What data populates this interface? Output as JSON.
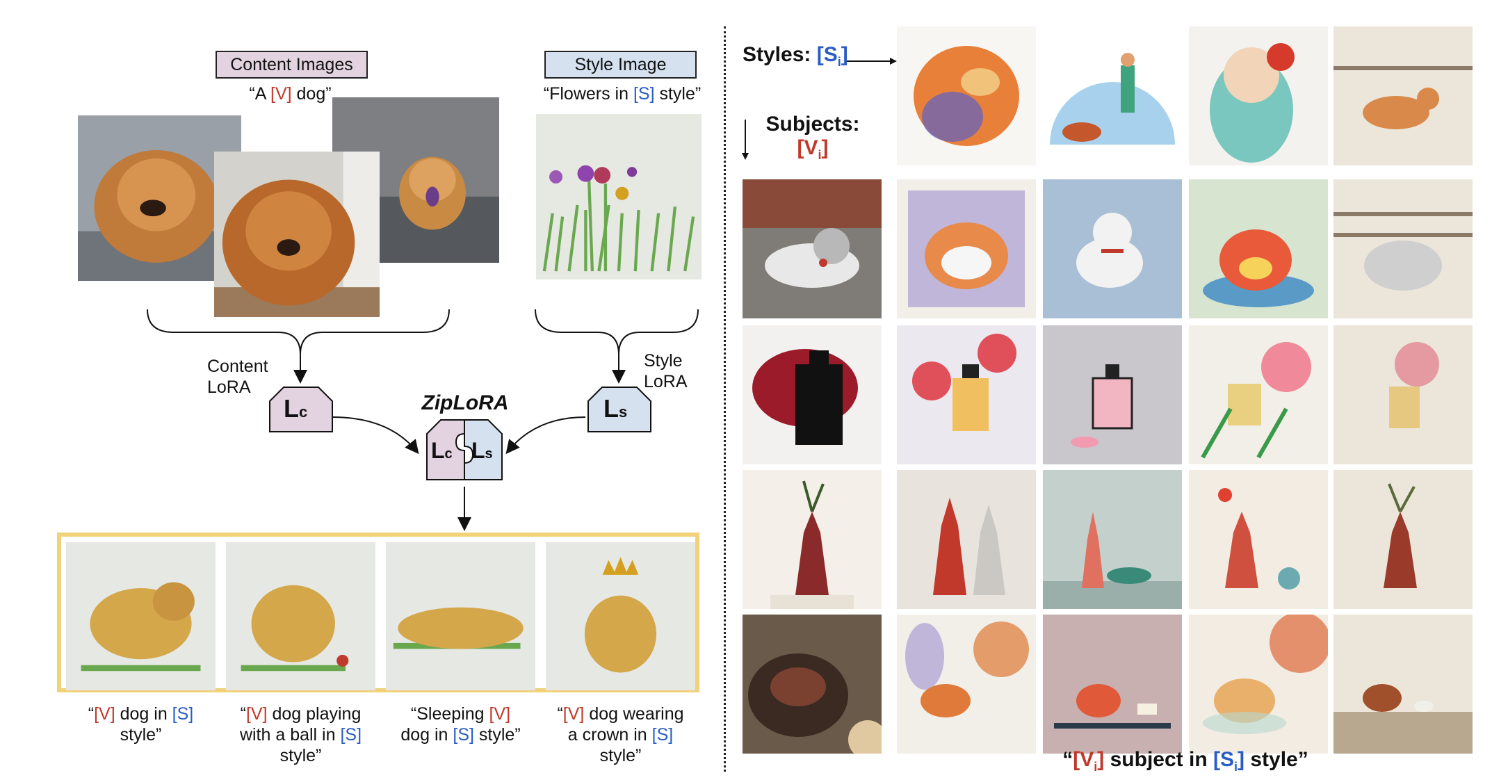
{
  "left": {
    "content_box_label": "Content Images",
    "content_prompt": {
      "q_open": "“A ",
      "token": "[V]",
      "rest": " dog”"
    },
    "style_box_label": "Style Image",
    "style_prompt": {
      "q_open": "“Flowers in ",
      "token": "[S]",
      "rest": " style”"
    },
    "content_lora_label_1": "Content",
    "content_lora_label_2": "LoRA",
    "style_lora_label_1": "Style",
    "style_lora_label_2": "LoRA",
    "lc_letter": "L",
    "lc_sub": "c",
    "ls_letter": "L",
    "ls_sub": "s",
    "ziplora_title": "ZipLoRA",
    "outputs": [
      {
        "line1_a": "“",
        "line1_v": "[V]",
        "line1_b": " dog in ",
        "line1_s": "[S]",
        "line2": "style”",
        "line3": ""
      },
      {
        "line1_a": "“",
        "line1_v": "[V]",
        "line1_b": " dog playing",
        "line2_a": "with a ball in ",
        "line2_s": "[S]",
        "line3": "style”"
      },
      {
        "line1_a": "“Sleeping ",
        "line1_v": "[V]",
        "line2_a": "dog in ",
        "line2_s": "[S]",
        "line2_b": " style”"
      },
      {
        "line1_a": "“",
        "line1_v": "[V]",
        "line1_b": " dog wearing",
        "line2_a": "a crown in ",
        "line2_s": "[S]",
        "line3": "style”"
      }
    ]
  },
  "right": {
    "styles_label": "Styles: ",
    "styles_token": "[S",
    "styles_sub": "i",
    "styles_close": "]",
    "subjects_label": "Subjects:",
    "subjects_token": "[V",
    "subjects_sub": "i",
    "subjects_close": "]",
    "caption": {
      "q": "“",
      "v": "[V",
      "v_sub": "i",
      "v_close": "]",
      "mid": " subject in ",
      "s": "[S",
      "s_sub": "i",
      "s_close": "]",
      "end": " style”"
    }
  },
  "colors": {
    "red": "#c0392b",
    "blue": "#2a5dc4",
    "content_box": "#e3d2e0",
    "style_box": "#d5e1ef",
    "highlight": "#f0d27a"
  }
}
